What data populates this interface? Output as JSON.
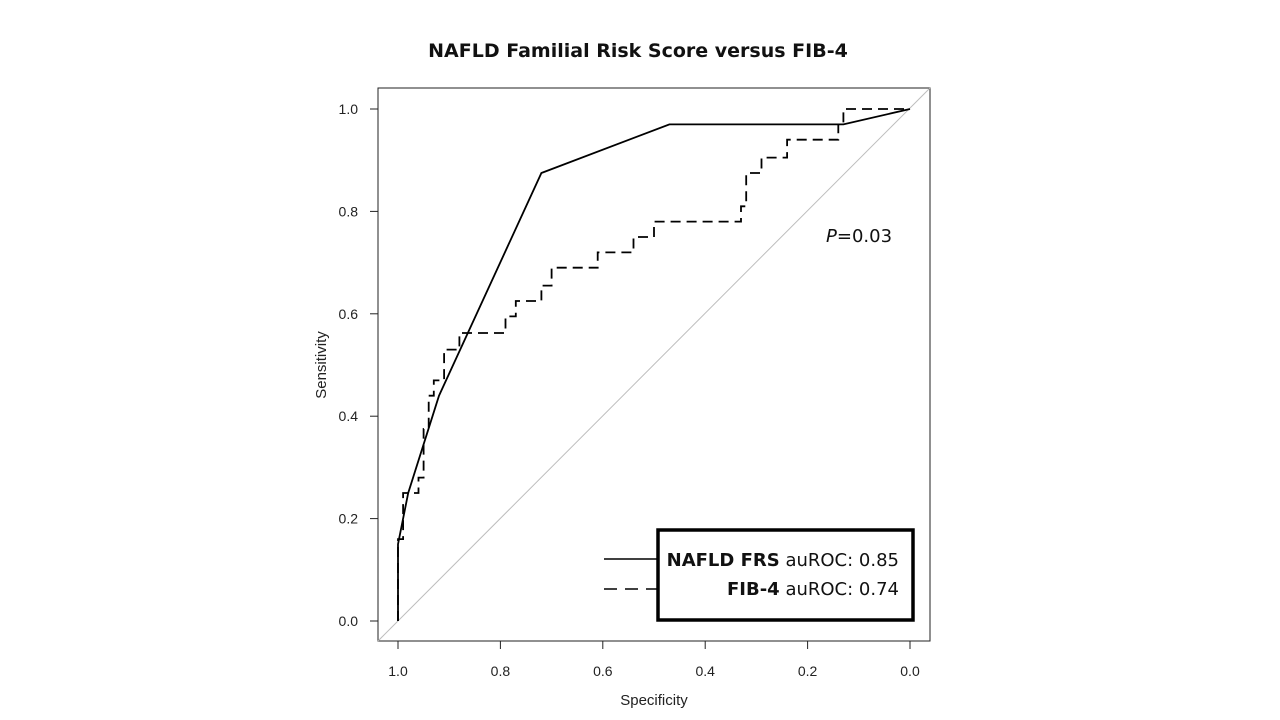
{
  "chart_data": {
    "type": "line",
    "title": "NAFLD Familial Risk Score versus FIB-4",
    "xlabel": "Specificity",
    "ylabel": "Sensitivity",
    "xlim": [
      1.0,
      0.0
    ],
    "ylim": [
      0.0,
      1.0
    ],
    "x_reversed": true,
    "xticks": [
      "1.0",
      "0.8",
      "0.6",
      "0.4",
      "0.2",
      "0.0"
    ],
    "yticks": [
      "0.0",
      "0.2",
      "0.4",
      "0.6",
      "0.8",
      "1.0"
    ],
    "grid": false,
    "reference_line": true,
    "annotation": {
      "italic": "P",
      "rest": "=0.03"
    },
    "legend": {
      "position": "bottom-right",
      "entries": [
        {
          "bold": "NAFLD FRS",
          "rest": " auROC: 0.85"
        },
        {
          "bold": "FIB-4",
          "rest": " auROC: 0.74"
        }
      ]
    },
    "series": [
      {
        "name": "NAFLD FRS",
        "style": "solid",
        "points": [
          [
            1.0,
            0.0
          ],
          [
            1.0,
            0.15
          ],
          [
            0.98,
            0.25
          ],
          [
            0.92,
            0.44
          ],
          [
            0.72,
            0.875
          ],
          [
            0.47,
            0.97
          ],
          [
            0.13,
            0.97
          ],
          [
            0.0,
            1.0
          ]
        ]
      },
      {
        "name": "FIB-4",
        "style": "dashed",
        "points": [
          [
            1.0,
            0.0
          ],
          [
            1.0,
            0.16
          ],
          [
            0.99,
            0.16
          ],
          [
            0.99,
            0.25
          ],
          [
            0.96,
            0.25
          ],
          [
            0.96,
            0.28
          ],
          [
            0.95,
            0.28
          ],
          [
            0.95,
            0.375
          ],
          [
            0.94,
            0.375
          ],
          [
            0.94,
            0.44
          ],
          [
            0.93,
            0.44
          ],
          [
            0.93,
            0.47
          ],
          [
            0.91,
            0.47
          ],
          [
            0.91,
            0.53
          ],
          [
            0.88,
            0.53
          ],
          [
            0.88,
            0.5625
          ],
          [
            0.79,
            0.5625
          ],
          [
            0.79,
            0.595
          ],
          [
            0.77,
            0.595
          ],
          [
            0.77,
            0.625
          ],
          [
            0.72,
            0.625
          ],
          [
            0.72,
            0.655
          ],
          [
            0.7,
            0.655
          ],
          [
            0.7,
            0.69
          ],
          [
            0.61,
            0.69
          ],
          [
            0.61,
            0.72
          ],
          [
            0.54,
            0.72
          ],
          [
            0.54,
            0.75
          ],
          [
            0.5,
            0.75
          ],
          [
            0.5,
            0.78
          ],
          [
            0.33,
            0.78
          ],
          [
            0.33,
            0.81
          ],
          [
            0.32,
            0.81
          ],
          [
            0.32,
            0.875
          ],
          [
            0.29,
            0.875
          ],
          [
            0.29,
            0.905
          ],
          [
            0.24,
            0.905
          ],
          [
            0.24,
            0.94
          ],
          [
            0.14,
            0.94
          ],
          [
            0.14,
            0.97
          ],
          [
            0.13,
            0.97
          ],
          [
            0.13,
            1.0
          ],
          [
            0.0,
            1.0
          ]
        ]
      }
    ]
  }
}
